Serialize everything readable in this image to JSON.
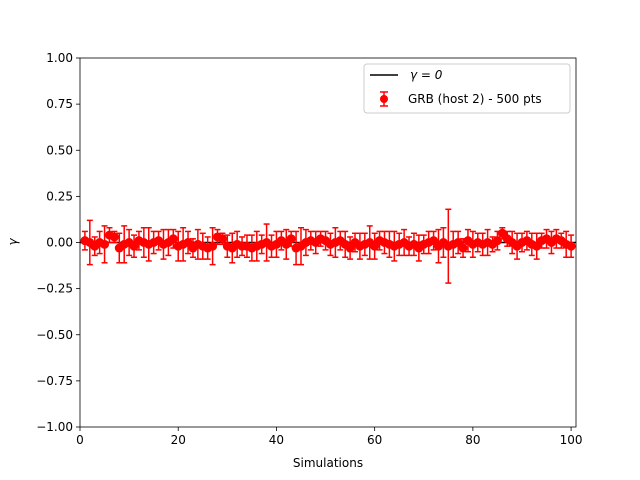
{
  "chart_data": {
    "type": "scatter",
    "title": "",
    "xlabel": "Simulations",
    "ylabel": "γ",
    "xlim": [
      0,
      101
    ],
    "ylim": [
      -1.0,
      1.0
    ],
    "xticks": [
      0,
      20,
      40,
      60,
      80,
      100
    ],
    "yticks": [
      -1.0,
      -0.75,
      -0.5,
      -0.25,
      0.0,
      0.25,
      0.5,
      0.75,
      1.0
    ],
    "xtick_labels": [
      "0",
      "20",
      "40",
      "60",
      "80",
      "100"
    ],
    "ytick_labels": [
      "−1.00",
      "−0.75",
      "−0.50",
      "−0.25",
      "0.00",
      "0.25",
      "0.50",
      "0.75",
      "1.00"
    ],
    "grid": false,
    "legend_position": "upper right",
    "reference_line": {
      "y": 0.0,
      "label": "γ = 0",
      "color": "#000000"
    },
    "series": [
      {
        "name": "GRB (host 2) - 500 pts",
        "color": "#ff0000",
        "x": [
          1,
          2,
          3,
          4,
          5,
          6,
          7,
          8,
          9,
          10,
          11,
          12,
          13,
          14,
          15,
          16,
          17,
          18,
          19,
          20,
          21,
          22,
          23,
          24,
          25,
          26,
          27,
          28,
          29,
          30,
          31,
          32,
          33,
          34,
          35,
          36,
          37,
          38,
          39,
          40,
          41,
          42,
          43,
          44,
          45,
          46,
          47,
          48,
          49,
          50,
          51,
          52,
          53,
          54,
          55,
          56,
          57,
          58,
          59,
          60,
          61,
          62,
          63,
          64,
          65,
          66,
          67,
          68,
          69,
          70,
          71,
          72,
          73,
          74,
          75,
          76,
          77,
          78,
          79,
          80,
          81,
          82,
          83,
          84,
          85,
          86,
          87,
          88,
          89,
          90,
          91,
          92,
          93,
          94,
          95,
          96,
          97,
          98,
          99,
          100
        ],
        "y": [
          0.01,
          0.0,
          -0.02,
          0.0,
          -0.01,
          0.04,
          0.03,
          -0.03,
          -0.01,
          0.0,
          -0.02,
          0.01,
          0.0,
          -0.01,
          0.0,
          0.01,
          -0.01,
          0.0,
          0.02,
          -0.02,
          -0.01,
          0.0,
          -0.03,
          -0.01,
          -0.02,
          -0.03,
          -0.02,
          0.03,
          0.02,
          -0.02,
          -0.03,
          -0.01,
          -0.02,
          -0.02,
          -0.03,
          -0.02,
          -0.01,
          0.0,
          -0.02,
          -0.01,
          0.01,
          -0.01,
          0.02,
          -0.03,
          -0.02,
          0.0,
          0.01,
          0.0,
          0.02,
          0.01,
          -0.01,
          0.0,
          0.01,
          -0.01,
          -0.03,
          0.0,
          -0.02,
          -0.01,
          0.0,
          -0.02,
          0.01,
          0.0,
          -0.01,
          -0.02,
          -0.01,
          0.0,
          -0.02,
          -0.01,
          -0.03,
          -0.01,
          0.0,
          0.01,
          -0.02,
          0.0,
          -0.02,
          -0.01,
          0.0,
          -0.03,
          0.01,
          -0.01,
          0.0,
          -0.01,
          0.0,
          -0.01,
          0.01,
          0.05,
          0.02,
          0.0,
          -0.02,
          0.0,
          0.01,
          -0.01,
          -0.02,
          0.01,
          0.02,
          0.0,
          0.02,
          0.01,
          -0.01,
          -0.02
        ],
        "err": [
          0.05,
          0.12,
          0.05,
          0.06,
          0.1,
          0.04,
          0.03,
          0.08,
          0.1,
          0.07,
          0.06,
          0.05,
          0.08,
          0.09,
          0.06,
          0.05,
          0.08,
          0.07,
          0.05,
          0.08,
          0.09,
          0.06,
          0.05,
          0.08,
          0.07,
          0.06,
          0.1,
          0.04,
          0.03,
          0.06,
          0.08,
          0.07,
          0.05,
          0.06,
          0.07,
          0.08,
          0.05,
          0.1,
          0.06,
          0.07,
          0.05,
          0.08,
          0.04,
          0.09,
          0.1,
          0.07,
          0.05,
          0.06,
          0.04,
          0.05,
          0.06,
          0.08,
          0.05,
          0.07,
          0.06,
          0.05,
          0.07,
          0.06,
          0.09,
          0.07,
          0.05,
          0.06,
          0.07,
          0.08,
          0.06,
          0.07,
          0.05,
          0.06,
          0.07,
          0.05,
          0.06,
          0.05,
          0.09,
          0.08,
          0.2,
          0.07,
          0.06,
          0.05,
          0.06,
          0.07,
          0.05,
          0.06,
          0.07,
          0.04,
          0.05,
          0.03,
          0.04,
          0.06,
          0.07,
          0.05,
          0.05,
          0.06,
          0.07,
          0.04,
          0.05,
          0.06,
          0.05,
          0.04,
          0.07,
          0.06
        ]
      }
    ]
  }
}
